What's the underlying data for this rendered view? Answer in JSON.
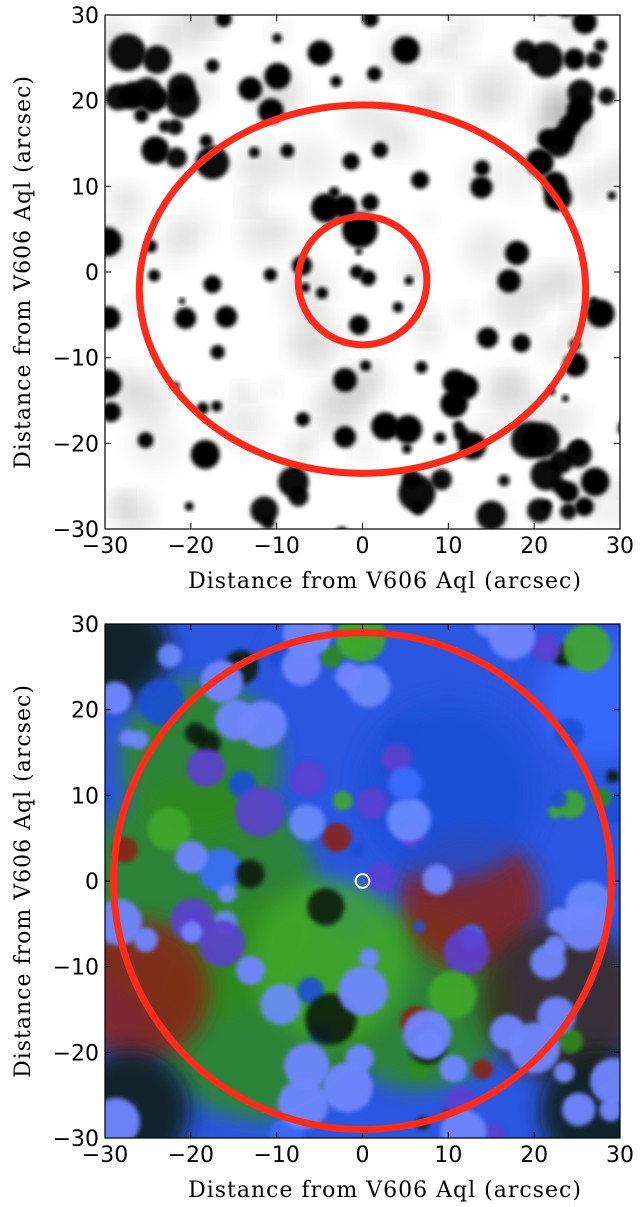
{
  "chart_data": [
    {
      "type": "scatter",
      "panel": "top",
      "image": "grayscale (inverted) map of stars around V606 Aql",
      "xlabel": "Distance from V606 Aql (arcsec)",
      "ylabel": "Distance from V606 Aql (arcsec)",
      "xlim": [
        -30,
        30
      ],
      "ylim": [
        -30,
        30
      ],
      "xticks": [
        -30,
        -20,
        -10,
        0,
        10,
        20,
        30
      ],
      "yticks": [
        -30,
        -20,
        -10,
        0,
        10,
        20,
        30
      ],
      "annotations": [
        {
          "shape": "ellipse",
          "center": [
            0,
            -1
          ],
          "radius_x": 7.5,
          "radius_y": 7.5,
          "color": "#ff2a1a"
        },
        {
          "shape": "ellipse",
          "center": [
            0,
            -2
          ],
          "radius_x": 26,
          "radius_y": 21.5,
          "color": "#ff2a1a"
        }
      ],
      "colors": {
        "ring": "#ff2a1a",
        "stars": "#000000",
        "background": "#ffffff"
      }
    },
    {
      "type": "scatter",
      "panel": "bottom",
      "image": "RGB composite X-ray image around V606 Aql",
      "xlabel": "Distance from V606 Aql (arcsec)",
      "ylabel": "Distance from V606 Aql (arcsec)",
      "xlim": [
        -30,
        30
      ],
      "ylim": [
        -30,
        30
      ],
      "xticks": [
        -30,
        -20,
        -10,
        0,
        10,
        20,
        30
      ],
      "yticks": [
        -30,
        -20,
        -10,
        0,
        10,
        20,
        30
      ],
      "annotations": [
        {
          "shape": "circle",
          "center": [
            0,
            0
          ],
          "radius": 29,
          "color": "#ff2a1a"
        },
        {
          "shape": "circle",
          "center": [
            0,
            0
          ],
          "radius": 0.8,
          "color": "#ffffff"
        }
      ],
      "colors": {
        "ring": "#ff2a1a",
        "marker": "#ffffff",
        "blue": "#3a6cff",
        "green": "#2f8a1e",
        "red": "#8a2216"
      }
    }
  ]
}
